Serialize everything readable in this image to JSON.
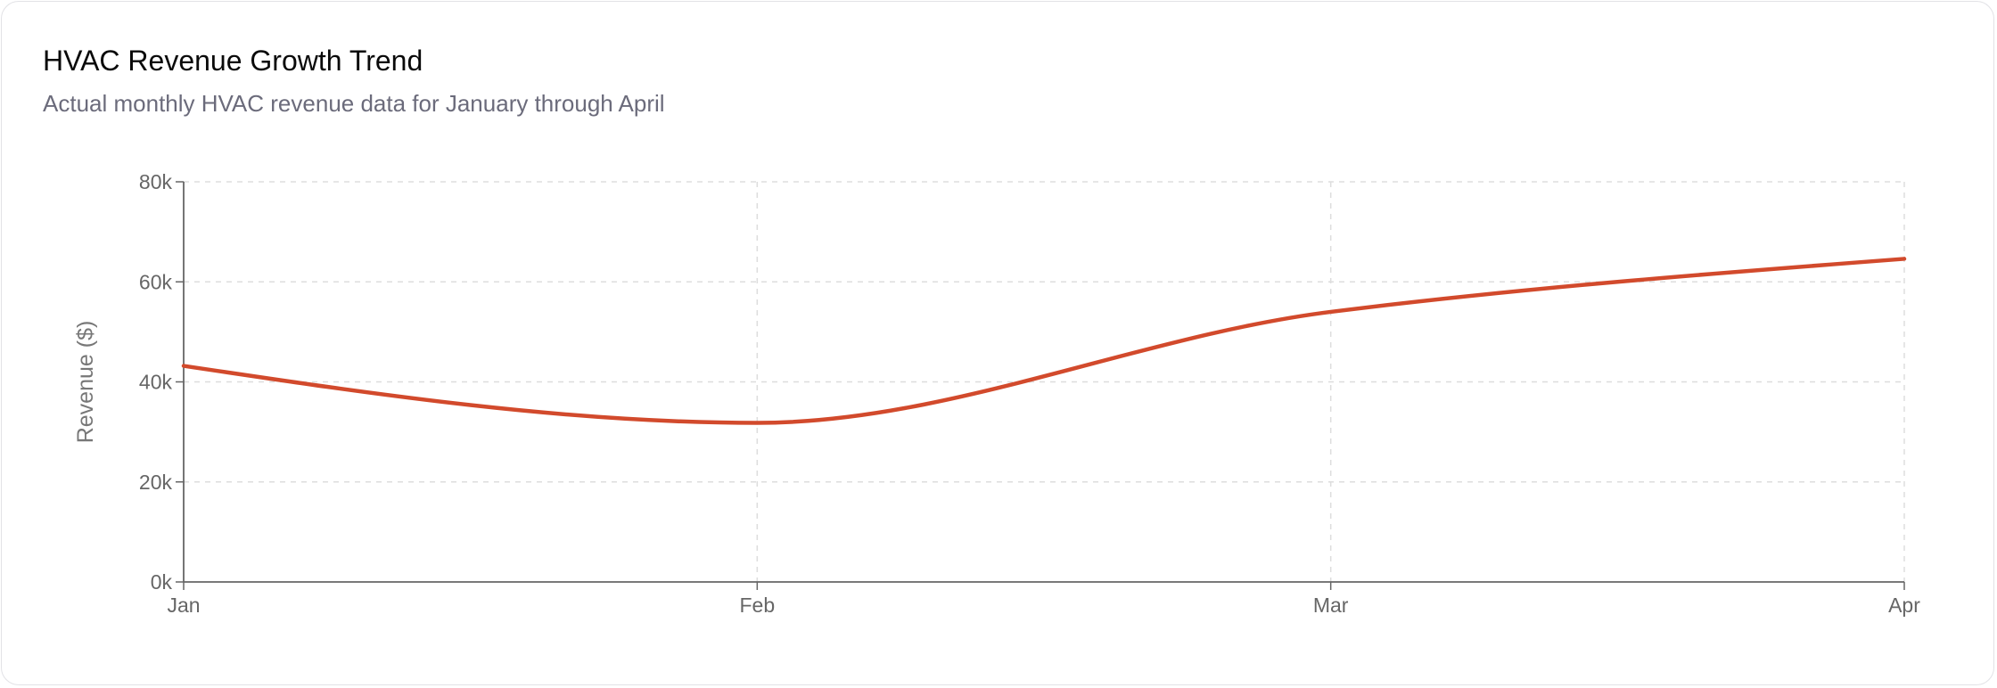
{
  "header": {
    "title": "HVAC Revenue Growth Trend",
    "subtitle": "Actual monthly HVAC revenue data for January through April"
  },
  "chart_data": {
    "type": "line",
    "title": "HVAC Revenue Growth Trend",
    "subtitle": "Actual monthly HVAC revenue data for January through April",
    "xlabel": "",
    "ylabel": "Revenue ($)",
    "categories": [
      "Jan",
      "Feb",
      "Mar",
      "Apr"
    ],
    "series": [
      {
        "values": [
          43200,
          31800,
          54000,
          64600
        ],
        "color": "#d24a2c"
      }
    ],
    "ylim": [
      0,
      80000
    ],
    "yticks": [
      0,
      20000,
      40000,
      60000,
      80000
    ],
    "ytick_labels": [
      "0k",
      "20k",
      "40k",
      "60k",
      "80k"
    ],
    "grid": true,
    "curve": "smooth"
  }
}
